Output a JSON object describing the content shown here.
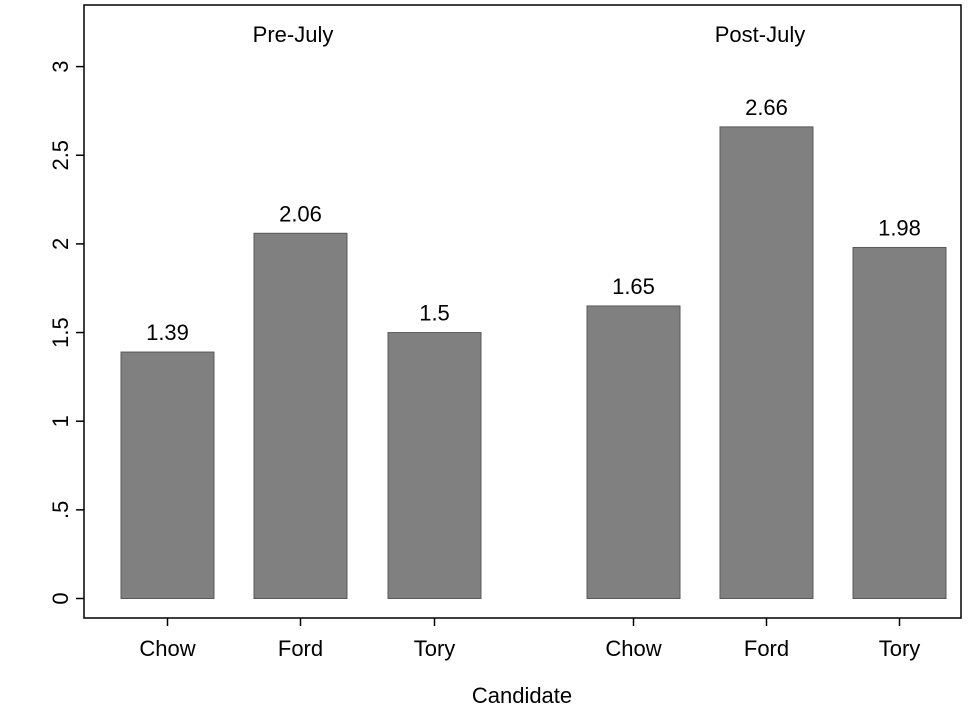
{
  "chart_data": {
    "type": "bar",
    "xlabel": "Candidate",
    "ylabel": "",
    "ylim": [
      0,
      3.25
    ],
    "yticks": [
      {
        "value": 0,
        "label": "0"
      },
      {
        "value": 0.5,
        "label": ".5"
      },
      {
        "value": 1,
        "label": "1"
      },
      {
        "value": 1.5,
        "label": "1.5"
      },
      {
        "value": 2,
        "label": "2"
      },
      {
        "value": 2.5,
        "label": "2.5"
      },
      {
        "value": 3,
        "label": "3"
      }
    ],
    "grid": false,
    "bar_color": "#808080",
    "groups": [
      {
        "title": "Pre-July",
        "categories": [
          "Chow",
          "Ford",
          "Tory"
        ],
        "values": [
          1.39,
          2.06,
          1.5
        ],
        "value_labels": [
          "1.39",
          "2.06",
          "1.5"
        ]
      },
      {
        "title": "Post-July",
        "categories": [
          "Chow",
          "Ford",
          "Tory"
        ],
        "values": [
          1.65,
          2.66,
          1.98
        ],
        "value_labels": [
          "1.65",
          "2.66",
          "1.98"
        ]
      }
    ]
  }
}
